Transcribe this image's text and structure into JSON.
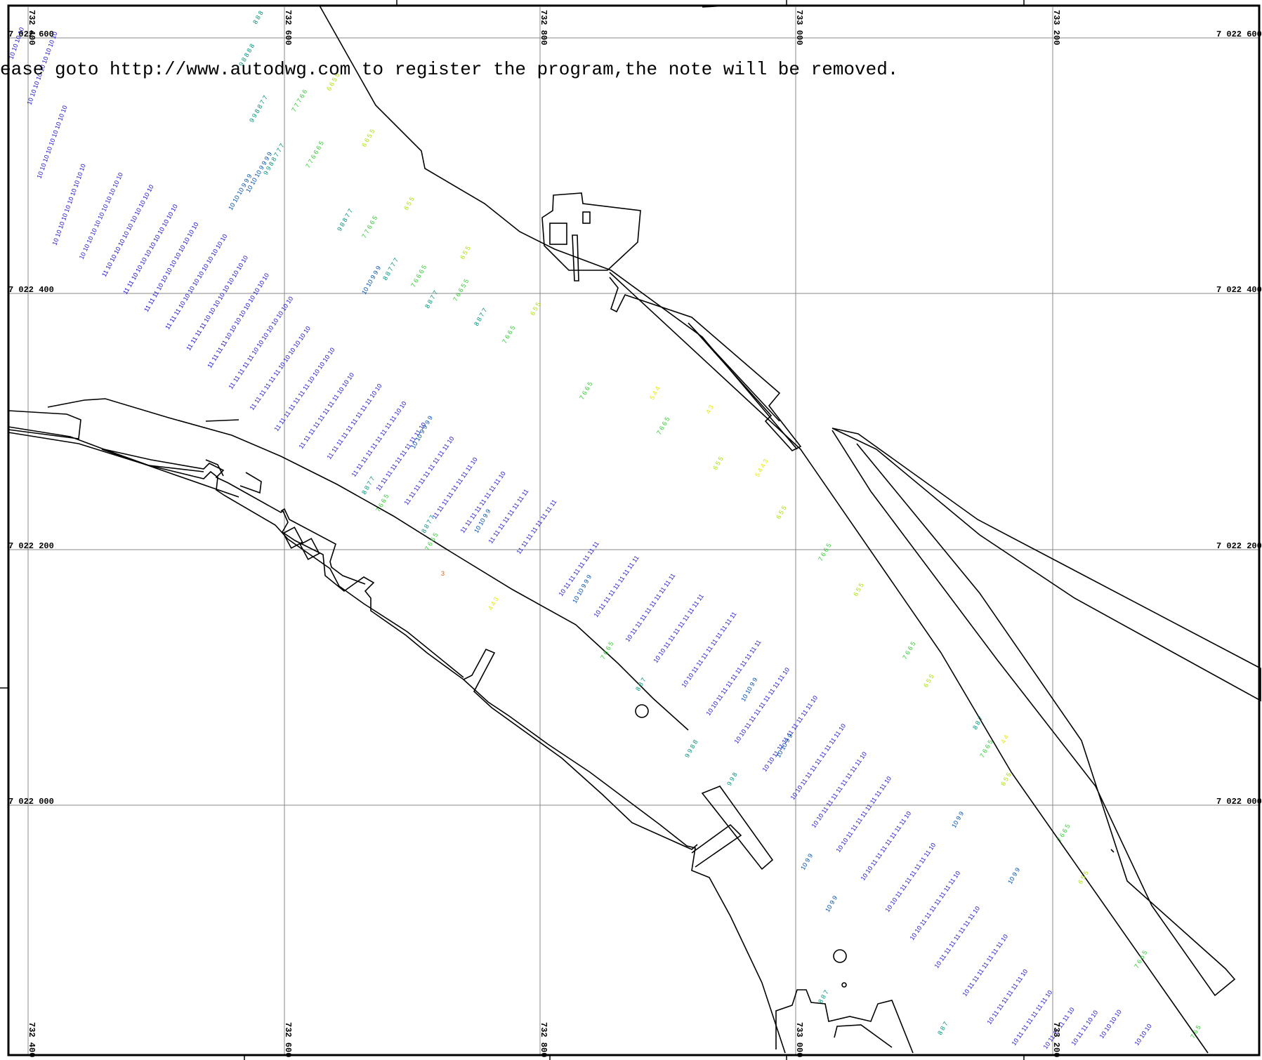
{
  "note": "ease goto http://www.autodwg.com to register the program,the note will be removed.",
  "grid": {
    "eastings": [
      "732 400",
      "732 600",
      "732 800",
      "733 000",
      "733 200"
    ],
    "northings": [
      "7 022 600",
      "7 022 400",
      "7 022 200",
      "7 022 000"
    ]
  },
  "colors": {
    "grid": "#888888",
    "frame": "#000000",
    "shoreline": "#000000",
    "deep": "#1a10d0",
    "mid": "#0050b0",
    "teal": "#00907a",
    "green": "#2ecc2e",
    "yellow_green": "#a8e000",
    "yellow": "#e8e800",
    "orange": "#e86000"
  },
  "soundings_sample": [
    "10",
    "11",
    "9",
    "8",
    "7",
    "6",
    "5",
    "4",
    "3"
  ]
}
